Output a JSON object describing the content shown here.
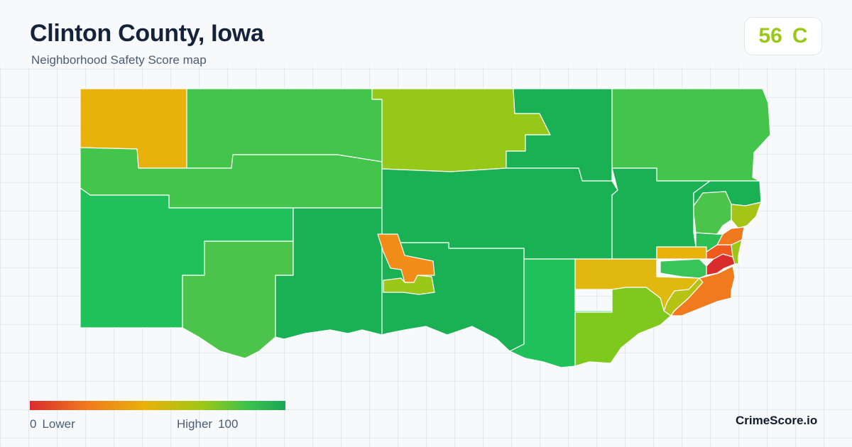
{
  "header": {
    "title": "Clinton County, Iowa",
    "subtitle": "Neighborhood Safety Score map"
  },
  "score": {
    "value": "56",
    "grade": "C",
    "color": "#9bc816"
  },
  "legend": {
    "min_value": "0",
    "min_label": "Lower",
    "max_label": "Higher",
    "max_value": "100",
    "colors": [
      "#d92c2c",
      "#f0781e",
      "#e9b10c",
      "#9bc816",
      "#3ec14c",
      "#1aa757"
    ]
  },
  "brand": "CrimeScore.io",
  "map": {
    "border_color": "#ffffff",
    "regions": [
      {
        "name": "nw-township",
        "color": "#e9b10c"
      },
      {
        "name": "north-central-west-township",
        "color": "#43c44b"
      },
      {
        "name": "north-central-township",
        "color": "#96c81a"
      },
      {
        "name": "north-central-east-township",
        "color": "#1ab054"
      },
      {
        "name": "ne-township",
        "color": "#43c44b"
      },
      {
        "name": "west-band-township",
        "color": "#43c44b"
      },
      {
        "name": "west-township",
        "color": "#20c05a"
      },
      {
        "name": "southwest-central-township",
        "color": "#4cc34b"
      },
      {
        "name": "south-central-west-township",
        "color": "#1ab054"
      },
      {
        "name": "central-township",
        "color": "#1ab054"
      },
      {
        "name": "south-central-township",
        "color": "#1ab054"
      },
      {
        "name": "south-central-east-township",
        "color": "#20c05a"
      },
      {
        "name": "east-central-township",
        "color": "#1ab054"
      },
      {
        "name": "east-north-strip",
        "color": "#1ab054"
      },
      {
        "name": "dewitt-city",
        "color": "#f08c17"
      },
      {
        "name": "dewitt-south-tract",
        "color": "#9bc816"
      },
      {
        "name": "southeast-upper-tract",
        "color": "#e0b810"
      },
      {
        "name": "southeast-lower-tract",
        "color": "#7fc81e"
      },
      {
        "name": "southeast-mid-tract",
        "color": "#b5c414"
      },
      {
        "name": "camanche-tract",
        "color": "#f07a1e"
      },
      {
        "name": "clinton-north-tract",
        "color": "#4cc34b"
      },
      {
        "name": "clinton-northwest-tract",
        "color": "#e9b10c"
      },
      {
        "name": "clinton-river-tract",
        "color": "#a5c416"
      },
      {
        "name": "clinton-core-tract",
        "color": "#d92c2c"
      },
      {
        "name": "clinton-west-tract",
        "color": "#39c45a"
      },
      {
        "name": "clinton-inner-tract",
        "color": "#f05a1e"
      },
      {
        "name": "clinton-east-strip",
        "color": "#9bc816"
      },
      {
        "name": "clinton-upper-tract",
        "color": "#f0781e"
      },
      {
        "name": "clinton-middle-tract",
        "color": "#2dbf55"
      }
    ]
  }
}
